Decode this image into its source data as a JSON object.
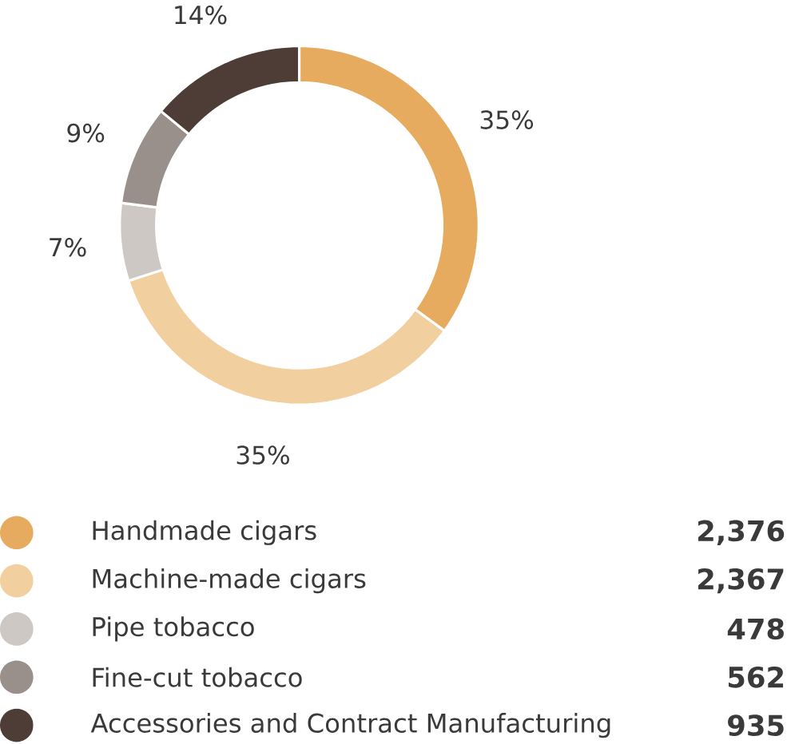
{
  "chart_data": {
    "type": "donut",
    "categories": [
      "Handmade cigars",
      "Machine-made cigars",
      "Pipe tobacco",
      "Fine-cut tobacco",
      "Accessories and Contract Manufacturing"
    ],
    "values": [
      35,
      35,
      7,
      9,
      14
    ],
    "annotations": [
      "2,376",
      "2,367",
      "478",
      "562",
      "935"
    ],
    "colors": [
      "#e6ab5f",
      "#f2cf9f",
      "#cdc8c4",
      "#9a908b",
      "#4d3d36"
    ],
    "value_labels": [
      "35%",
      "35%",
      "7%",
      "9%",
      "14%"
    ],
    "legend": "bottom"
  }
}
